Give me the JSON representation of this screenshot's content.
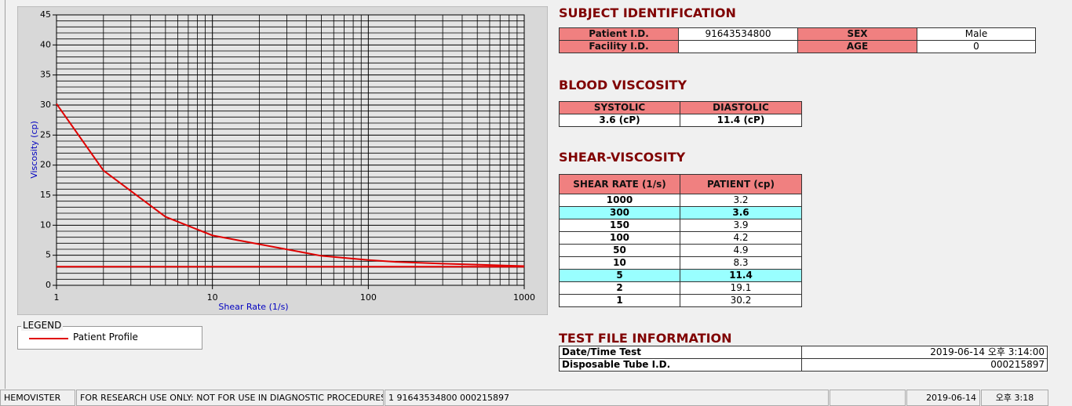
{
  "chart_data": {
    "type": "line",
    "x_label": "Shear Rate (1/s)",
    "y_label": "Viscosity (cp)",
    "x_log": true,
    "xlim": [
      1,
      1000
    ],
    "xticks": [
      1,
      10,
      100,
      1000
    ],
    "ylim": [
      0,
      45
    ],
    "yticks": [
      0,
      5,
      10,
      15,
      20,
      25,
      30,
      35,
      40,
      45
    ],
    "grid": true,
    "minor_grid": true,
    "series": [
      {
        "name": "Patient Profile",
        "color": "#e00000",
        "x": [
          1,
          2,
          5,
          10,
          50,
          100,
          150,
          300,
          1000
        ],
        "values": [
          30.2,
          19.1,
          11.4,
          8.3,
          4.9,
          4.2,
          3.9,
          3.6,
          3.2
        ]
      },
      {
        "color": "#e00000",
        "x": [
          1,
          1000
        ],
        "values": [
          3.1,
          3.1
        ]
      }
    ]
  },
  "legend": {
    "title": "LEGEND"
  },
  "subject_identification": {
    "title": "SUBJECT IDENTIFICATION",
    "fields": [
      {
        "label": "Patient I.D.",
        "value": "91643534800"
      },
      {
        "label": "SEX",
        "value": "Male"
      },
      {
        "label": "Facility I.D."
      },
      {
        "label": "AGE",
        "value": "0"
      }
    ]
  },
  "blood_viscosity": {
    "title": "BLOOD VISCOSITY",
    "headers": [
      "SYSTOLIC",
      "DIASTOLIC"
    ],
    "values": [
      "3.6 (cP)",
      "11.4 (cP)"
    ]
  },
  "shear_viscosity": {
    "title": "SHEAR-VISCOSITY",
    "headers": [
      "SHEAR RATE (1/s)",
      "PATIENT (cp)"
    ],
    "rows": [
      [
        "1000",
        "3.2"
      ],
      [
        "300",
        "3.6"
      ],
      [
        "150",
        "3.9"
      ],
      [
        "100",
        "4.2"
      ],
      [
        "50",
        "4.9"
      ],
      [
        "10",
        "8.3"
      ],
      [
        "5",
        "11.4"
      ],
      [
        "2",
        "19.1"
      ],
      [
        "1",
        "30.2"
      ]
    ],
    "highlighted_rows": [
      1,
      6
    ],
    "highlight_color": "#99ffff"
  },
  "test_file": {
    "title": "TEST FILE INFORMATION",
    "rows": [
      [
        "Date/Time Test",
        "2019-06-14   오후 3:14:00"
      ],
      [
        "Disposable Tube I.D.",
        "000215897"
      ]
    ]
  },
  "status_bar": [
    "HEMOVISTER",
    "FOR RESEARCH USE ONLY: NOT FOR USE IN DIAGNOSTIC PROCEDURES",
    "1  91643534800  000215897",
    "2019-06-14",
    "오후 3:18"
  ]
}
